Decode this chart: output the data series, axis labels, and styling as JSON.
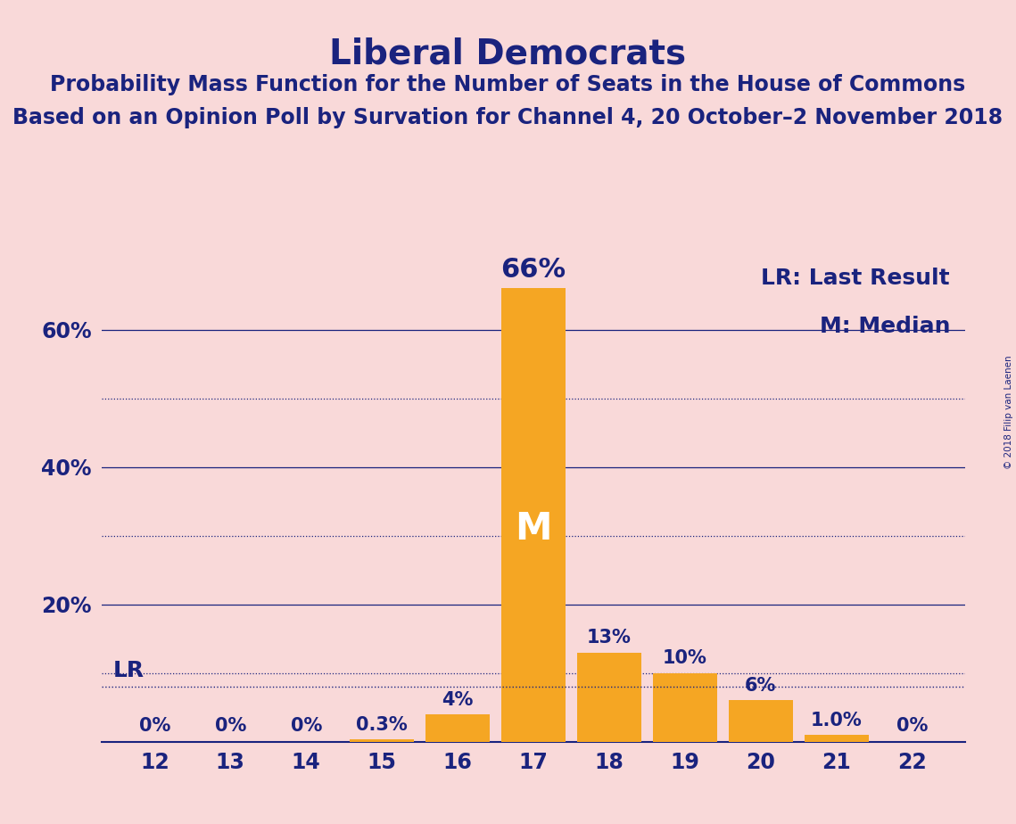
{
  "title": "Liberal Democrats",
  "subtitle1": "Probability Mass Function for the Number of Seats in the House of Commons",
  "subtitle2": "Based on an Opinion Poll by Survation for Channel 4, 20 October–2 November 2018",
  "watermark": "© 2018 Filip van Laenen",
  "categories": [
    12,
    13,
    14,
    15,
    16,
    17,
    18,
    19,
    20,
    21,
    22
  ],
  "values": [
    0,
    0,
    0,
    0.3,
    4,
    66,
    13,
    10,
    6,
    1.0,
    0
  ],
  "labels": [
    "0%",
    "0%",
    "0%",
    "0.3%",
    "4%",
    "66%",
    "13%",
    "10%",
    "6%",
    "1.0%",
    "0%"
  ],
  "bar_color": "#F5A623",
  "background_color": "#F9D9D9",
  "text_color": "#1a237e",
  "median_label": "M",
  "median_bar_idx": 5,
  "lr_level": 8,
  "lr_label": "LR",
  "legend_lr": "LR: Last Result",
  "legend_m": "M: Median",
  "ytick_labels": [
    "20%",
    "40%",
    "60%"
  ],
  "ytick_values": [
    20,
    40,
    60
  ],
  "ymax": 72,
  "grid_solid": [
    20,
    40,
    60
  ],
  "grid_dotted": [
    10,
    30,
    50
  ],
  "title_fontsize": 28,
  "subtitle_fontsize": 17,
  "label_fontsize": 15,
  "tick_fontsize": 17,
  "annotation_fontsize": 18,
  "legend_fontsize": 18
}
